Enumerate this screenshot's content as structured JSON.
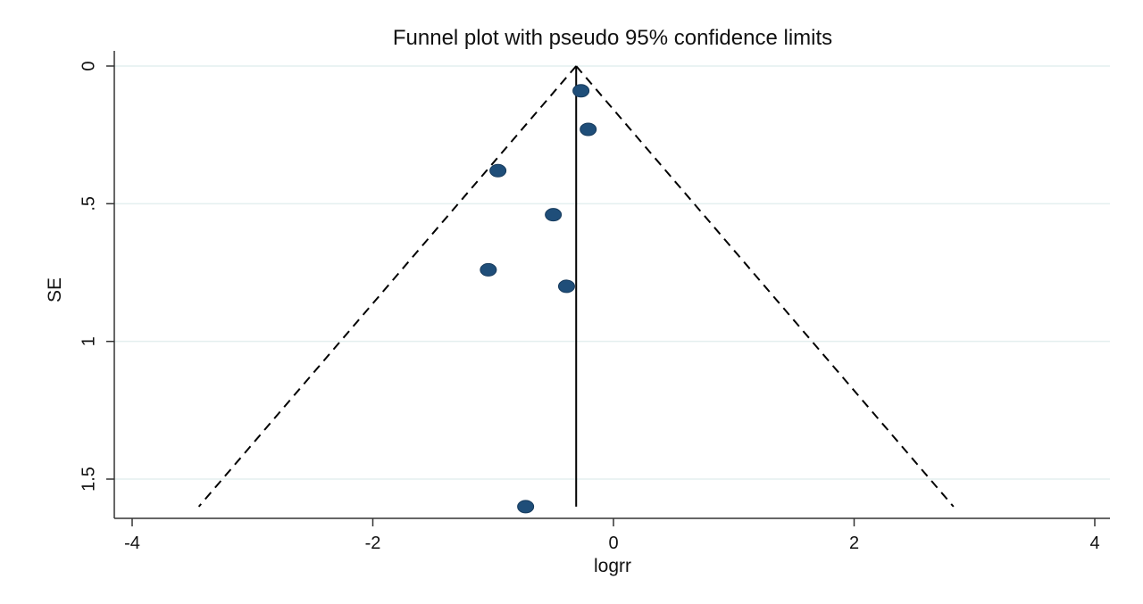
{
  "chart_data": {
    "type": "scatter",
    "title": "Funnel plot with pseudo 95% confidence limits",
    "xlabel": "logrr",
    "ylabel": "SE",
    "xlim": [
      -4,
      4
    ],
    "ylim": [
      0,
      1.6
    ],
    "y_reversed": true,
    "grid": true,
    "x_ticks": [
      {
        "value": -4,
        "label": "-4"
      },
      {
        "value": -2,
        "label": "-2"
      },
      {
        "value": 0,
        "label": "0"
      },
      {
        "value": 2,
        "label": "2"
      },
      {
        "value": 4,
        "label": "4"
      }
    ],
    "y_ticks": [
      {
        "value": 0,
        "label": "0"
      },
      {
        "value": 0.5,
        "label": ".5"
      },
      {
        "value": 1,
        "label": "1"
      },
      {
        "value": 1.5,
        "label": "1.5"
      }
    ],
    "points": [
      {
        "x": -0.27,
        "y": 0.09
      },
      {
        "x": -0.21,
        "y": 0.23
      },
      {
        "x": -0.96,
        "y": 0.38
      },
      {
        "x": -0.5,
        "y": 0.54
      },
      {
        "x": -1.04,
        "y": 0.74
      },
      {
        "x": -0.39,
        "y": 0.8
      },
      {
        "x": -0.73,
        "y": 1.6
      }
    ],
    "pooled_estimate": -0.31,
    "pseudo_ci_multiplier": 1.96,
    "se_max": 1.6,
    "colors": {
      "marker": "#1f4e79",
      "grid": "#e4efef",
      "axis": "#333333",
      "funnel": "#000000"
    }
  }
}
